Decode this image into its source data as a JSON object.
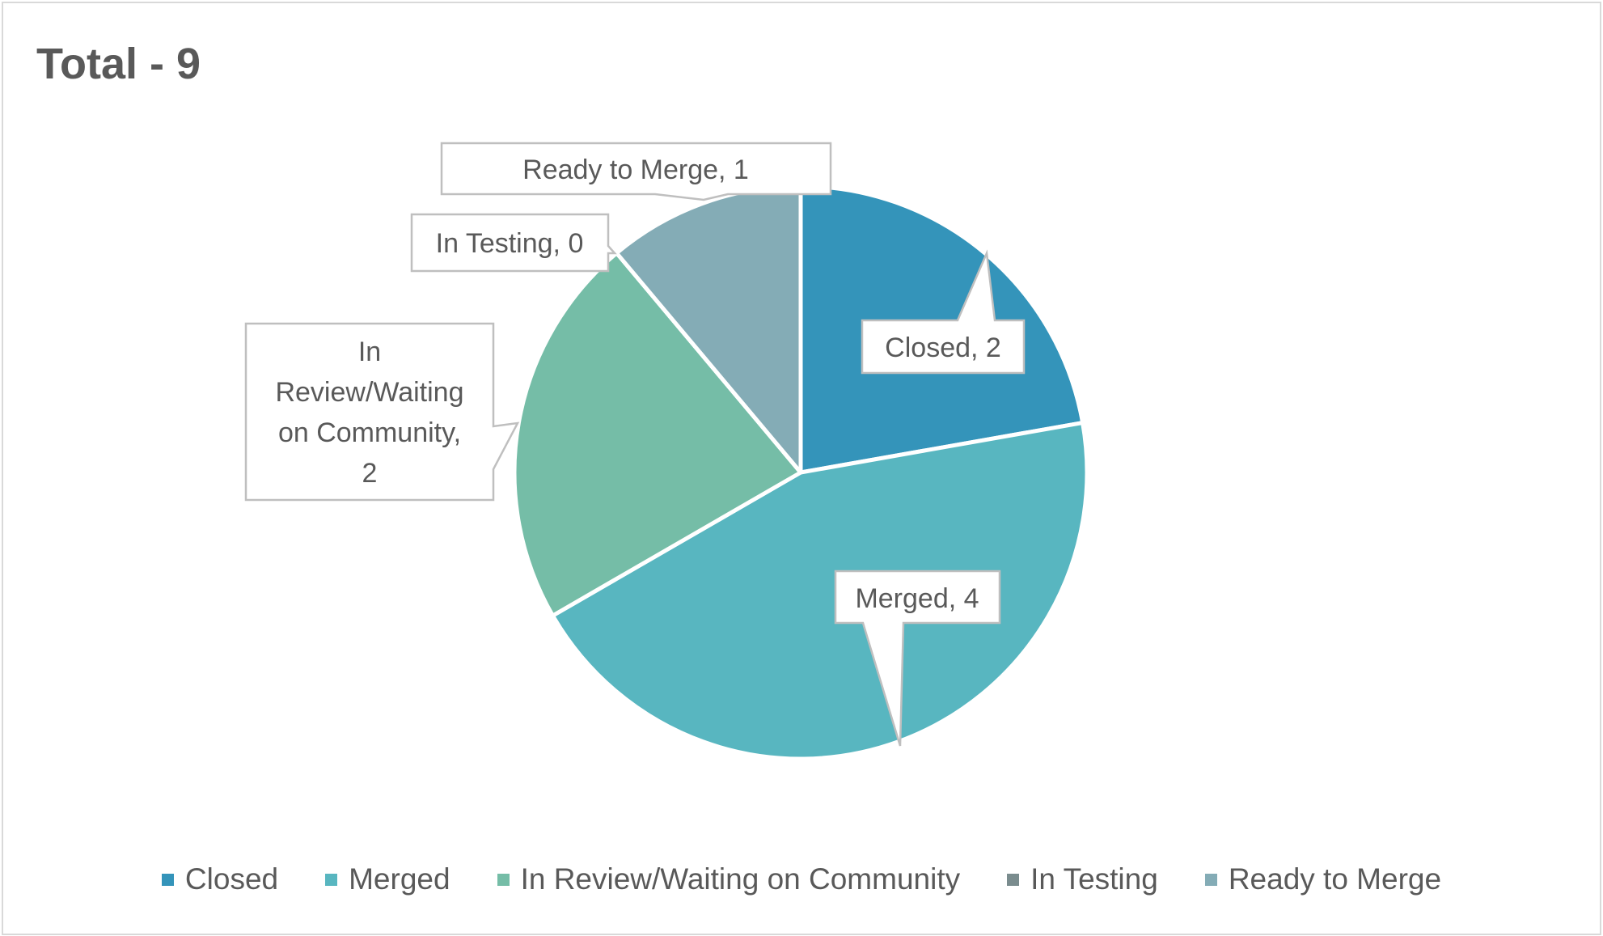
{
  "chart_data": {
    "type": "pie",
    "title": "Total - 9",
    "categories": [
      "Closed",
      "Merged",
      "In Review/Waiting on Community",
      "In Testing",
      "Ready to Merge"
    ],
    "values": [
      2,
      4,
      2,
      0,
      1
    ],
    "colors": [
      "#3494BA",
      "#58B6C0",
      "#75BDA7",
      "#7A8C8E",
      "#84ACB6"
    ],
    "data_labels": [
      "Closed, 2",
      "Merged, 4",
      "In Review/Waiting on Community, 2",
      "In Testing, 0",
      "Ready to Merge, 1"
    ],
    "start_angle_deg": 0,
    "direction": "clockwise",
    "legend_position": "bottom",
    "total": 9
  },
  "title": "Total - 9",
  "labels": {
    "closed": "Closed, 2",
    "merged": "Merged, 4",
    "in_review_lines": [
      "In",
      "Review/Waiting",
      "on Community,",
      "2"
    ],
    "in_testing": "In Testing, 0",
    "ready_to_merge": "Ready to Merge, 1"
  },
  "legend": [
    {
      "label": "Closed",
      "color": "#3494BA"
    },
    {
      "label": "Merged",
      "color": "#58B6C0"
    },
    {
      "label": "In Review/Waiting on Community",
      "color": "#75BDA7"
    },
    {
      "label": "In Testing",
      "color": "#7A8C8E"
    },
    {
      "label": "Ready to Merge",
      "color": "#84ACB6"
    }
  ]
}
